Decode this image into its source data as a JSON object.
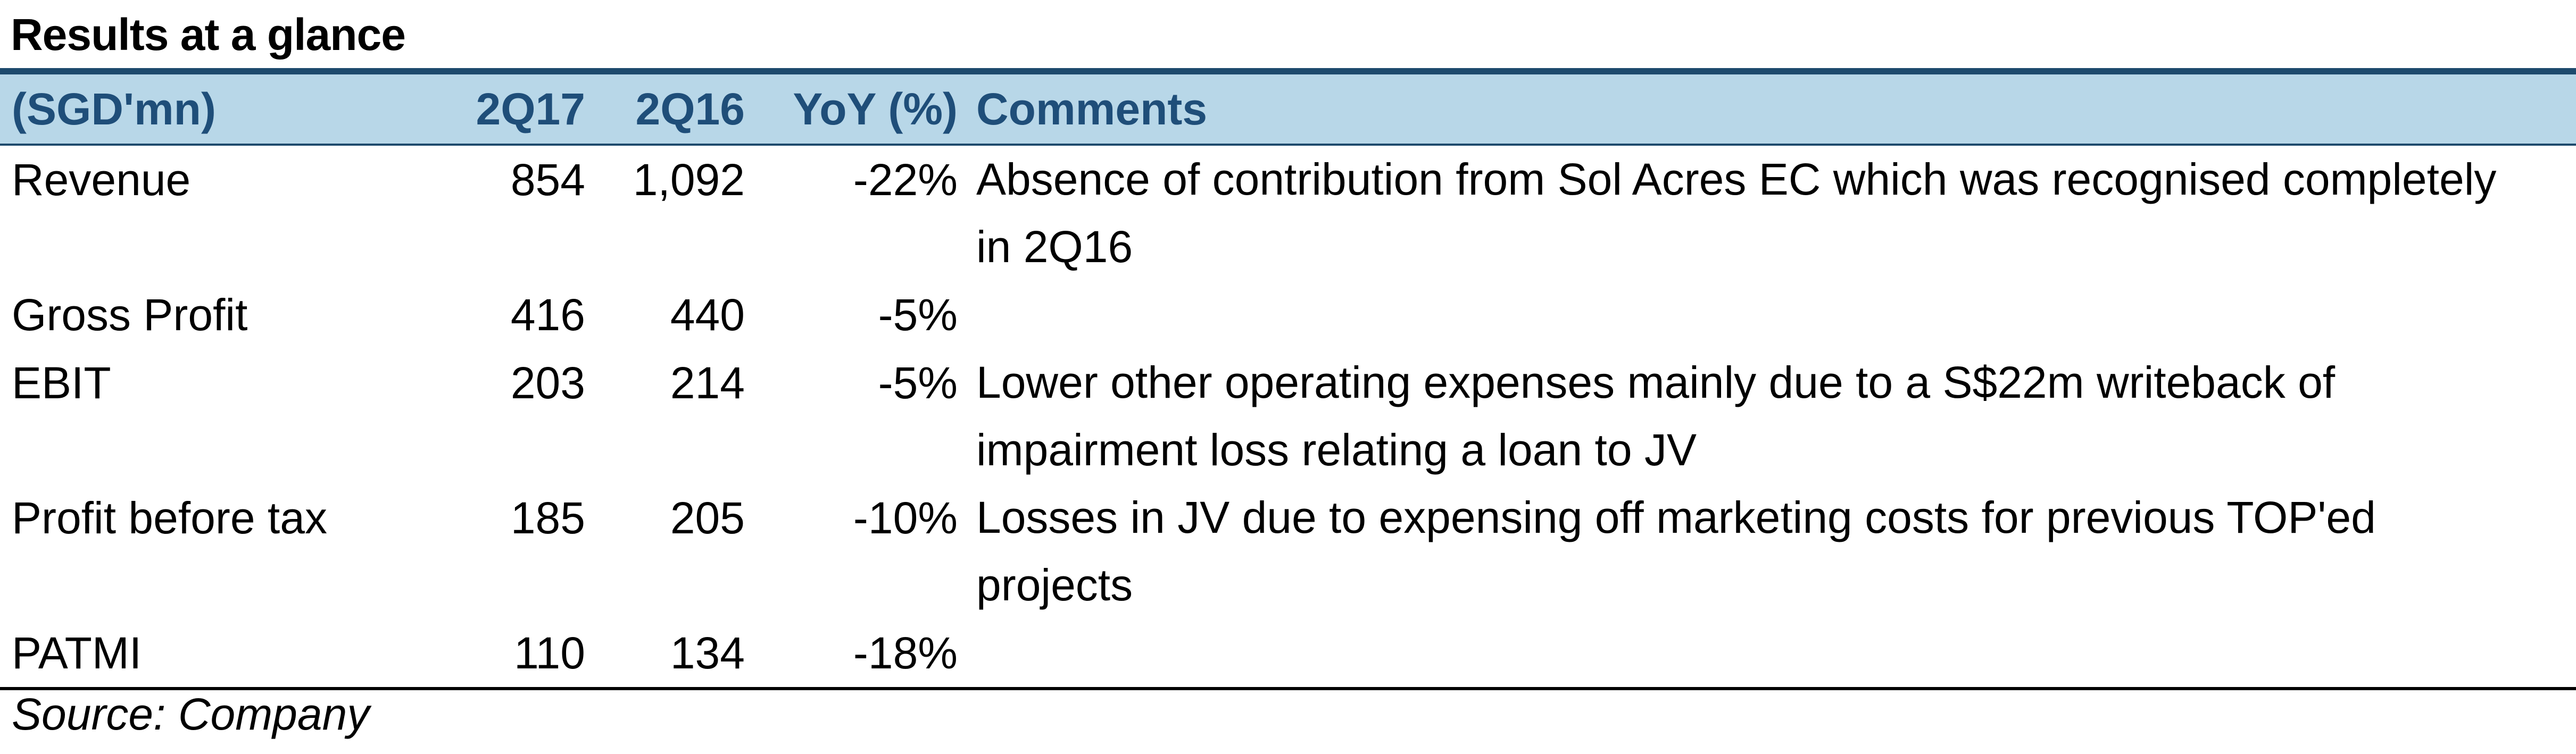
{
  "title": "Results at a glance",
  "header": {
    "label": "(SGD'mn)",
    "q17": "2Q17",
    "q16": "2Q16",
    "yoy": "YoY (%)",
    "comments": "Comments"
  },
  "rows": [
    {
      "label": "Revenue",
      "q17": "854",
      "q16": "1,092",
      "yoy": "-22%",
      "comment": "Absence of contribution from Sol Acres EC which was recognised completely in 2Q16"
    },
    {
      "label": "Gross Profit",
      "q17": "416",
      "q16": "440",
      "yoy": "-5%",
      "comment": ""
    },
    {
      "label": "EBIT",
      "q17": "203",
      "q16": "214",
      "yoy": "-5%",
      "comment": "Lower other operating expenses mainly due to a S$22m writeback of impairment loss relating a loan to JV"
    },
    {
      "label": "Profit before tax",
      "q17": "185",
      "q16": "205",
      "yoy": "-10%",
      "comment": "Losses in JV due to expensing off marketing costs for previous TOP'ed projects"
    },
    {
      "label": "PATMI",
      "q17": "110",
      "q16": "134",
      "yoy": "-18%",
      "comment": ""
    }
  ],
  "source": "Source: Company"
}
